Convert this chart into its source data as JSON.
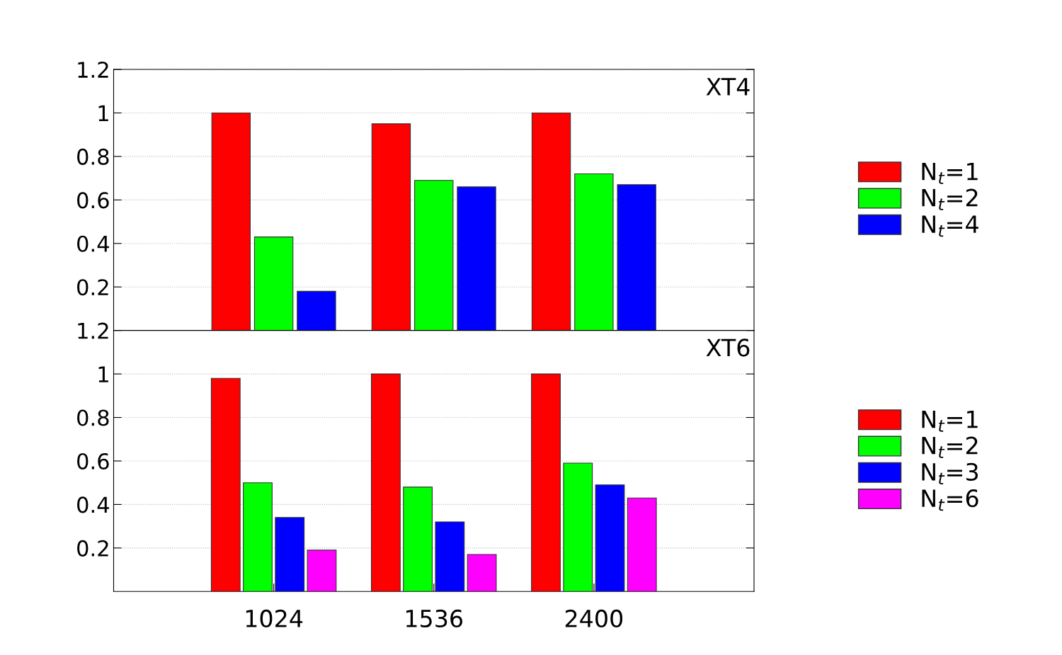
{
  "chart_data": [
    {
      "type": "bar",
      "title": "XT4",
      "categories": [
        "1024",
        "1536",
        "2400"
      ],
      "series": [
        {
          "name": "N$_{t}$=1",
          "color": "#ff0000",
          "values": [
            1.0,
            0.95,
            1.0
          ]
        },
        {
          "name": "N$_{t}$=2",
          "color": "#00ff00",
          "values": [
            0.43,
            0.69,
            0.72
          ]
        },
        {
          "name": "N$_{t}$=4",
          "color": "#0000ff",
          "values": [
            0.18,
            0.66,
            0.67
          ]
        }
      ],
      "ylim": [
        0,
        1.2
      ],
      "yticks": [
        0.2,
        0.4,
        0.6,
        0.8,
        1,
        1.2
      ],
      "grid": "y",
      "legend": "right",
      "tick_labels": "y"
    },
    {
      "type": "bar",
      "title": "XT6",
      "categories": [
        "1024",
        "1536",
        "2400"
      ],
      "series": [
        {
          "name": "N$_{t}$=1",
          "color": "#ff0000",
          "values": [
            0.98,
            1.0,
            1.0
          ]
        },
        {
          "name": "N$_{t}$=2",
          "color": "#00ff00",
          "values": [
            0.5,
            0.48,
            0.59
          ]
        },
        {
          "name": "N$_{t}$=3",
          "color": "#0000ff",
          "values": [
            0.34,
            0.32,
            0.49
          ]
        },
        {
          "name": "N$_{t}$=6",
          "color": "#ff00ff",
          "values": [
            0.19,
            0.17,
            0.43
          ]
        }
      ],
      "ylim": [
        0,
        1.2
      ],
      "yticks": [
        0.2,
        0.4,
        0.6,
        0.8,
        1,
        1.2
      ],
      "grid": "y",
      "legend": "right"
    }
  ]
}
